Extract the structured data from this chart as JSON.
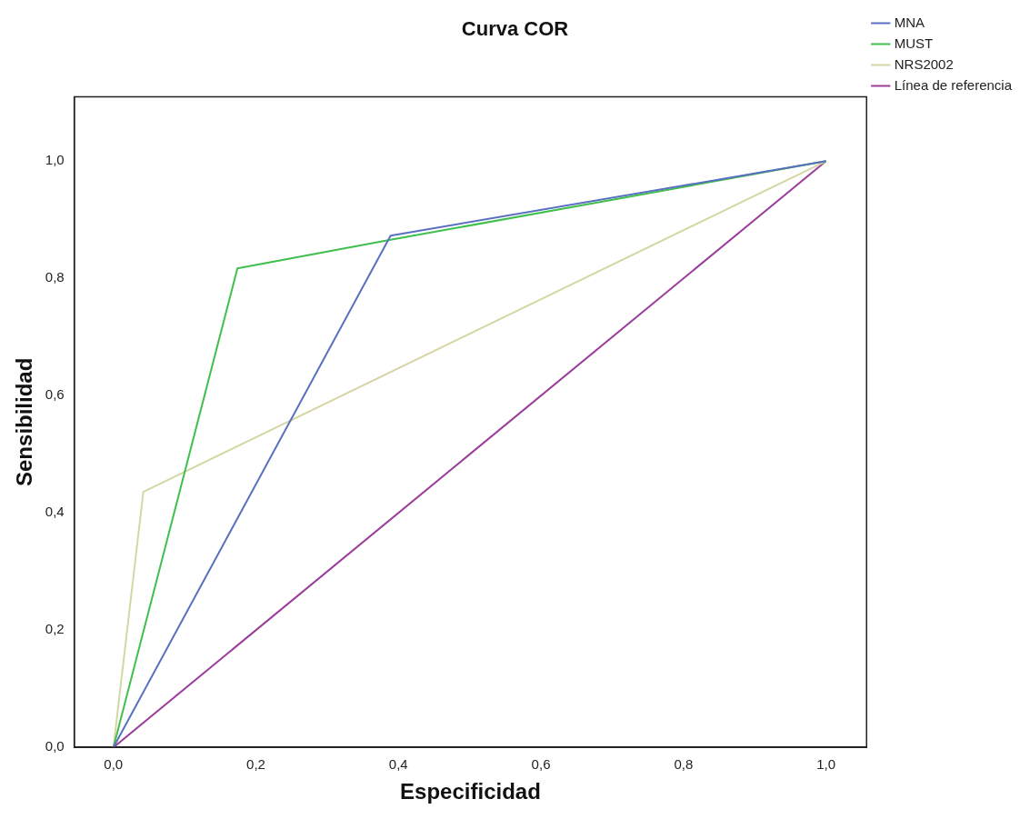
{
  "chart_data": {
    "type": "line",
    "title": "Curva COR",
    "xlabel": "Especificidad",
    "ylabel": "Sensibilidad",
    "xlim": [
      -0.055,
      1.057
    ],
    "ylim": [
      0,
      1.11
    ],
    "xticks": [
      {
        "value": 0,
        "label": "0,0"
      },
      {
        "value": 0.2,
        "label": "0,2"
      },
      {
        "value": 0.4,
        "label": "0,4"
      },
      {
        "value": 0.6,
        "label": "0,6"
      },
      {
        "value": 0.8,
        "label": "0,8"
      },
      {
        "value": 1,
        "label": "1,0"
      }
    ],
    "yticks": [
      {
        "value": 0,
        "label": "0,0"
      },
      {
        "value": 0.2,
        "label": "0,2"
      },
      {
        "value": 0.4,
        "label": "0,4"
      },
      {
        "value": 0.6,
        "label": "0,6"
      },
      {
        "value": 0.8,
        "label": "0,8"
      },
      {
        "value": 1,
        "label": "1,0"
      }
    ],
    "grid": false,
    "legend": "right",
    "series": [
      {
        "name": "MNA",
        "color": "#5a6fc0",
        "x": [
          0,
          0.389,
          1
        ],
        "values": [
          0,
          0.873,
          1
        ]
      },
      {
        "name": "MUST",
        "color": "#3fbf4c",
        "x": [
          0,
          0.174,
          0.389,
          1
        ],
        "values": [
          0,
          0.817,
          0.866,
          1
        ]
      },
      {
        "name": "NRS2002",
        "color": "#d4d6a4",
        "x": [
          0,
          0.042,
          1
        ],
        "values": [
          0,
          0.436,
          1
        ]
      },
      {
        "name": "Línea de referencia",
        "color": "#9b3c9b",
        "x": [
          0,
          1
        ],
        "values": [
          0,
          1
        ]
      }
    ]
  }
}
